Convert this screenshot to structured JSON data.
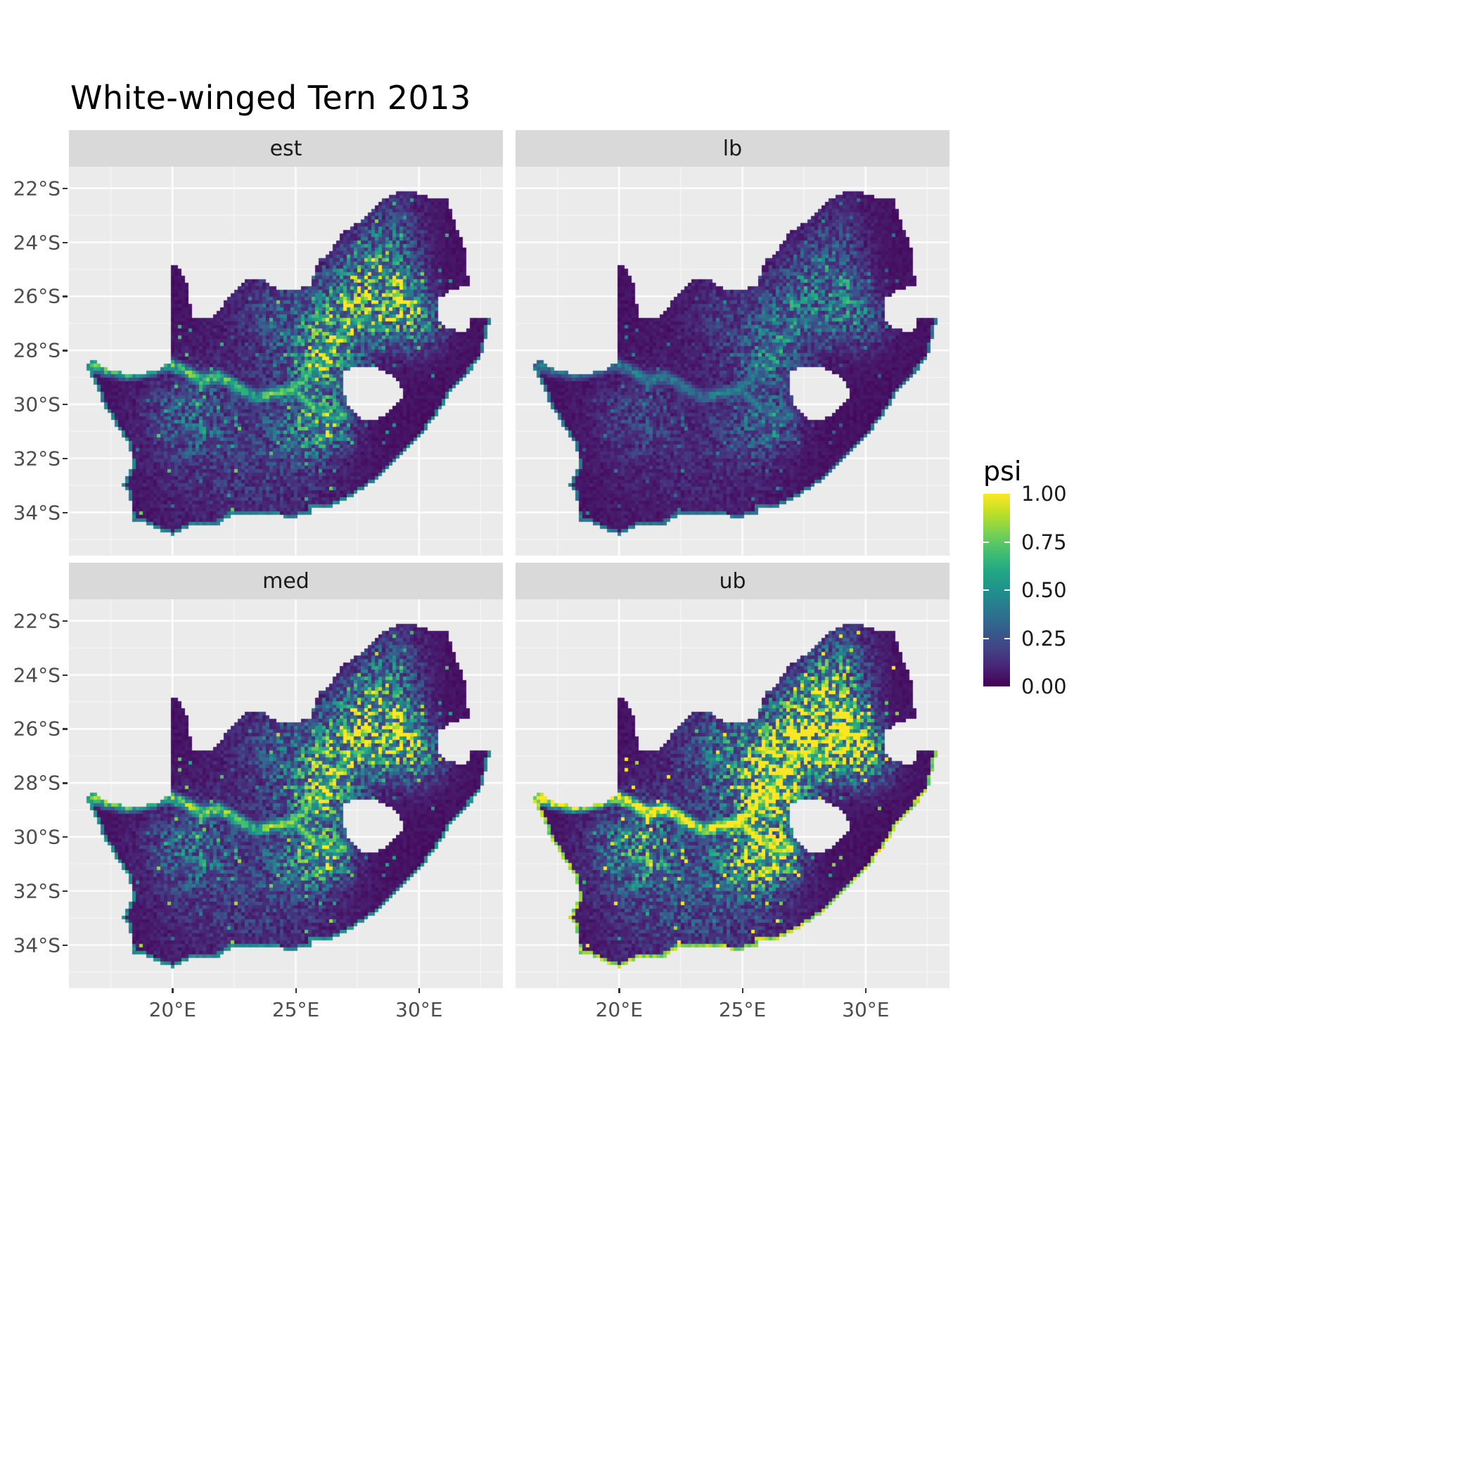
{
  "title": "White-winged Tern 2013",
  "style": {
    "panel_bg": "#EBEBEB",
    "strip_bg": "#D9D9D9",
    "grid_color": "#FFFFFF",
    "axis_text_color": "#4D4D4D",
    "strip_text_color": "#1A1A1A",
    "title_color": "#000000"
  },
  "chart_data": {
    "type": "heatmap",
    "subtype": "faceted_raster_occupancy_map",
    "region": "South Africa",
    "title": "White-winged Tern 2013",
    "facets": [
      {
        "label": "est",
        "intensity": 0.9,
        "coast_intensity": 0.5
      },
      {
        "label": "lb",
        "intensity": 0.5,
        "coast_intensity": 0.45
      },
      {
        "label": "med",
        "intensity": 1.0,
        "coast_intensity": 0.55
      },
      {
        "label": "ub",
        "intensity": 1.45,
        "coast_intensity": 0.95
      }
    ],
    "x_axis": {
      "tick_labels": [
        "20°E",
        "25°E",
        "30°E"
      ],
      "tick_values": [
        20,
        25,
        30
      ],
      "domain": [
        15.8,
        33.4
      ]
    },
    "y_axis": {
      "tick_labels": [
        "22°S",
        "24°S",
        "26°S",
        "28°S",
        "30°S",
        "32°S",
        "34°S"
      ],
      "tick_values": [
        -22,
        -24,
        -26,
        -28,
        -30,
        -32,
        -34
      ],
      "domain": [
        -35.6,
        -21.2
      ]
    },
    "minor_x": [
      17.5,
      22.5,
      27.5,
      32.5
    ],
    "minor_y": [
      -23,
      -25,
      -27,
      -29,
      -31,
      -33,
      -35
    ],
    "legend": {
      "title": "psi",
      "tick_labels": [
        "1.00",
        "0.75",
        "0.50",
        "0.25",
        "0.00"
      ],
      "tick_values": [
        1.0,
        0.75,
        0.5,
        0.25,
        0.0
      ],
      "range": [
        0,
        1
      ],
      "position": "right"
    },
    "colormap": {
      "name": "viridis",
      "stops": [
        [
          0.0,
          "#440154"
        ],
        [
          0.1,
          "#482475"
        ],
        [
          0.2,
          "#414487"
        ],
        [
          0.3,
          "#355f8d"
        ],
        [
          0.4,
          "#2a788e"
        ],
        [
          0.5,
          "#21918c"
        ],
        [
          0.6,
          "#22a884"
        ],
        [
          0.7,
          "#44bf70"
        ],
        [
          0.8,
          "#7ad151"
        ],
        [
          0.9,
          "#bddf26"
        ],
        [
          1.0,
          "#fde725"
        ]
      ]
    },
    "map": {
      "outline": [
        [
          16.45,
          -28.58
        ],
        [
          16.8,
          -28.35
        ],
        [
          17.35,
          -28.68
        ],
        [
          18.0,
          -28.85
        ],
        [
          18.75,
          -28.88
        ],
        [
          19.4,
          -28.72
        ],
        [
          19.99,
          -28.42
        ],
        [
          19.99,
          -24.77
        ],
        [
          20.35,
          -25.05
        ],
        [
          20.6,
          -25.5
        ],
        [
          20.7,
          -26.15
        ],
        [
          20.85,
          -26.8
        ],
        [
          21.55,
          -26.85
        ],
        [
          22.15,
          -26.2
        ],
        [
          22.85,
          -25.45
        ],
        [
          23.6,
          -25.3
        ],
        [
          24.25,
          -25.75
        ],
        [
          25.05,
          -25.72
        ],
        [
          25.6,
          -25.62
        ],
        [
          25.9,
          -24.72
        ],
        [
          26.45,
          -24.28
        ],
        [
          26.9,
          -23.65
        ],
        [
          27.6,
          -23.2
        ],
        [
          28.25,
          -22.6
        ],
        [
          29.05,
          -22.18
        ],
        [
          29.7,
          -22.12
        ],
        [
          30.3,
          -22.3
        ],
        [
          31.1,
          -22.35
        ],
        [
          31.55,
          -23.5
        ],
        [
          31.9,
          -24.3
        ],
        [
          31.98,
          -25.1
        ],
        [
          32.02,
          -25.65
        ],
        [
          31.4,
          -25.72
        ],
        [
          30.82,
          -26.1
        ],
        [
          30.78,
          -26.8
        ],
        [
          31.05,
          -27.2
        ],
        [
          31.95,
          -27.32
        ],
        [
          32.13,
          -26.86
        ],
        [
          32.88,
          -26.86
        ],
        [
          32.55,
          -28.2
        ],
        [
          32.0,
          -28.85
        ],
        [
          31.3,
          -29.55
        ],
        [
          30.65,
          -30.5
        ],
        [
          30.0,
          -31.25
        ],
        [
          29.25,
          -31.95
        ],
        [
          28.55,
          -32.6
        ],
        [
          27.85,
          -33.05
        ],
        [
          27.0,
          -33.55
        ],
        [
          26.45,
          -33.78
        ],
        [
          25.65,
          -33.85
        ],
        [
          25.6,
          -34.05
        ],
        [
          24.85,
          -34.2
        ],
        [
          24.0,
          -34.1
        ],
        [
          23.35,
          -34.1
        ],
        [
          22.55,
          -34.05
        ],
        [
          21.8,
          -34.45
        ],
        [
          20.9,
          -34.42
        ],
        [
          20.0,
          -34.82
        ],
        [
          19.35,
          -34.62
        ],
        [
          18.85,
          -34.38
        ],
        [
          18.45,
          -34.35
        ],
        [
          18.32,
          -33.92
        ],
        [
          18.28,
          -33.35
        ],
        [
          17.95,
          -33.0
        ],
        [
          18.35,
          -32.35
        ],
        [
          18.28,
          -31.6
        ],
        [
          17.6,
          -30.6
        ],
        [
          17.2,
          -30.0
        ],
        [
          16.9,
          -29.3
        ]
      ],
      "coast_from_index": 38,
      "lesotho_hole": [
        [
          26.95,
          -28.78
        ],
        [
          27.55,
          -28.56
        ],
        [
          28.2,
          -28.6
        ],
        [
          28.78,
          -28.86
        ],
        [
          29.2,
          -29.2
        ],
        [
          29.38,
          -29.58
        ],
        [
          29.1,
          -30.02
        ],
        [
          28.6,
          -30.38
        ],
        [
          28.05,
          -30.62
        ],
        [
          27.5,
          -30.45
        ],
        [
          27.08,
          -30.0
        ],
        [
          26.9,
          -29.4
        ]
      ],
      "rivers": [
        [
          [
            16.6,
            -28.5
          ],
          [
            17.4,
            -28.72
          ],
          [
            18.2,
            -28.85
          ],
          [
            19.0,
            -28.75
          ],
          [
            19.8,
            -28.5
          ],
          [
            20.6,
            -28.8
          ],
          [
            21.2,
            -29.15
          ],
          [
            21.9,
            -28.95
          ],
          [
            22.6,
            -29.35
          ],
          [
            23.4,
            -29.75
          ],
          [
            24.1,
            -29.6
          ],
          [
            24.85,
            -29.45
          ]
        ],
        [
          [
            24.85,
            -29.45
          ],
          [
            25.35,
            -29.05
          ],
          [
            25.9,
            -28.55
          ],
          [
            26.5,
            -27.9
          ],
          [
            26.85,
            -27.3
          ],
          [
            27.35,
            -26.95
          ],
          [
            27.9,
            -26.8
          ]
        ],
        [
          [
            24.85,
            -29.45
          ],
          [
            25.4,
            -29.85
          ],
          [
            25.95,
            -30.25
          ],
          [
            26.5,
            -30.55
          ],
          [
            26.95,
            -30.4
          ]
        ]
      ],
      "hotspots": [
        [
          27.9,
          -26.1,
          1.1,
          0.9
        ],
        [
          29.2,
          -26.35,
          0.7,
          0.75
        ],
        [
          26.6,
          -27.3,
          0.9,
          0.5
        ],
        [
          26.0,
          -28.55,
          0.8,
          0.7
        ],
        [
          26.25,
          -30.7,
          0.6,
          0.8
        ],
        [
          25.2,
          -30.9,
          0.9,
          0.45
        ],
        [
          20.7,
          -30.35,
          1.1,
          0.4
        ],
        [
          28.6,
          -24.9,
          0.9,
          0.45
        ],
        [
          24.6,
          -26.9,
          1.4,
          0.35
        ],
        [
          30.1,
          -27.1,
          0.7,
          0.45
        ],
        [
          22.0,
          -31.9,
          2.2,
          0.13
        ],
        [
          24.5,
          -32.3,
          2.0,
          0.12
        ],
        [
          28.9,
          -23.4,
          0.9,
          0.25
        ]
      ]
    }
  }
}
